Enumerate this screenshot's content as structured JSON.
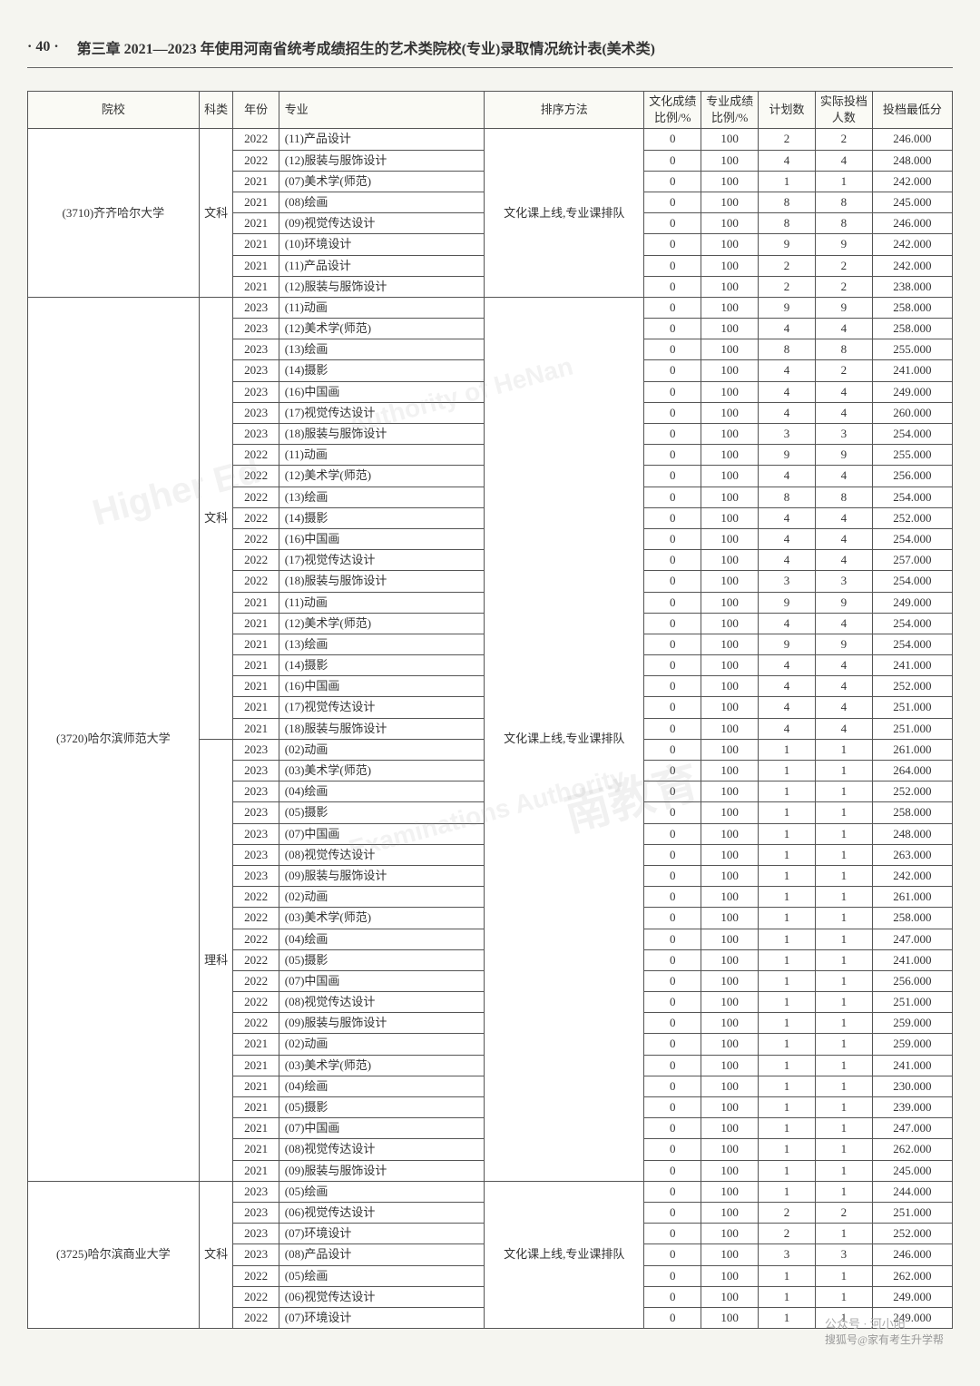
{
  "page_number": "· 40 ·",
  "chapter": "第三章  2021—2023 年使用河南省统考成绩招生的艺术类院校(专业)录取情况统计表(美术类)",
  "columns": [
    "院校",
    "科类",
    "年份",
    "专业",
    "排序方法",
    "文化成绩比例/%",
    "专业成绩比例/%",
    "计划数",
    "实际投档人数",
    "投档最低分"
  ],
  "footer_wx": "公众号 · 河小阳",
  "footer_src": "搜狐号@家有考生升学帮",
  "groups": [
    {
      "school": "(3710)齐齐哈尔大学",
      "sort": "文化课上线,专业课排队",
      "cats": [
        {
          "cat": "文科",
          "rows": [
            [
              "2022",
              "(11)产品设计",
              "0",
              "100",
              "2",
              "2",
              "246.000"
            ],
            [
              "2022",
              "(12)服装与服饰设计",
              "0",
              "100",
              "4",
              "4",
              "248.000"
            ],
            [
              "2021",
              "(07)美术学(师范)",
              "0",
              "100",
              "1",
              "1",
              "242.000"
            ],
            [
              "2021",
              "(08)绘画",
              "0",
              "100",
              "8",
              "8",
              "245.000"
            ],
            [
              "2021",
              "(09)视觉传达设计",
              "0",
              "100",
              "8",
              "8",
              "246.000"
            ],
            [
              "2021",
              "(10)环境设计",
              "0",
              "100",
              "9",
              "9",
              "242.000"
            ],
            [
              "2021",
              "(11)产品设计",
              "0",
              "100",
              "2",
              "2",
              "242.000"
            ],
            [
              "2021",
              "(12)服装与服饰设计",
              "0",
              "100",
              "2",
              "2",
              "238.000"
            ]
          ]
        }
      ]
    },
    {
      "school": "(3720)哈尔滨师范大学",
      "sort": "文化课上线,专业课排队",
      "cats": [
        {
          "cat": "文科",
          "rows": [
            [
              "2023",
              "(11)动画",
              "0",
              "100",
              "9",
              "9",
              "258.000"
            ],
            [
              "2023",
              "(12)美术学(师范)",
              "0",
              "100",
              "4",
              "4",
              "258.000"
            ],
            [
              "2023",
              "(13)绘画",
              "0",
              "100",
              "8",
              "8",
              "255.000"
            ],
            [
              "2023",
              "(14)摄影",
              "0",
              "100",
              "4",
              "2",
              "241.000"
            ],
            [
              "2023",
              "(16)中国画",
              "0",
              "100",
              "4",
              "4",
              "249.000"
            ],
            [
              "2023",
              "(17)视觉传达设计",
              "0",
              "100",
              "4",
              "4",
              "260.000"
            ],
            [
              "2023",
              "(18)服装与服饰设计",
              "0",
              "100",
              "3",
              "3",
              "254.000"
            ],
            [
              "2022",
              "(11)动画",
              "0",
              "100",
              "9",
              "9",
              "255.000"
            ],
            [
              "2022",
              "(12)美术学(师范)",
              "0",
              "100",
              "4",
              "4",
              "256.000"
            ],
            [
              "2022",
              "(13)绘画",
              "0",
              "100",
              "8",
              "8",
              "254.000"
            ],
            [
              "2022",
              "(14)摄影",
              "0",
              "100",
              "4",
              "4",
              "252.000"
            ],
            [
              "2022",
              "(16)中国画",
              "0",
              "100",
              "4",
              "4",
              "254.000"
            ],
            [
              "2022",
              "(17)视觉传达设计",
              "0",
              "100",
              "4",
              "4",
              "257.000"
            ],
            [
              "2022",
              "(18)服装与服饰设计",
              "0",
              "100",
              "3",
              "3",
              "254.000"
            ],
            [
              "2021",
              "(11)动画",
              "0",
              "100",
              "9",
              "9",
              "249.000"
            ],
            [
              "2021",
              "(12)美术学(师范)",
              "0",
              "100",
              "4",
              "4",
              "254.000"
            ],
            [
              "2021",
              "(13)绘画",
              "0",
              "100",
              "9",
              "9",
              "254.000"
            ],
            [
              "2021",
              "(14)摄影",
              "0",
              "100",
              "4",
              "4",
              "241.000"
            ],
            [
              "2021",
              "(16)中国画",
              "0",
              "100",
              "4",
              "4",
              "252.000"
            ],
            [
              "2021",
              "(17)视觉传达设计",
              "0",
              "100",
              "4",
              "4",
              "251.000"
            ],
            [
              "2021",
              "(18)服装与服饰设计",
              "0",
              "100",
              "4",
              "4",
              "251.000"
            ]
          ]
        },
        {
          "cat": "理科",
          "rows": [
            [
              "2023",
              "(02)动画",
              "0",
              "100",
              "1",
              "1",
              "261.000"
            ],
            [
              "2023",
              "(03)美术学(师范)",
              "0",
              "100",
              "1",
              "1",
              "264.000"
            ],
            [
              "2023",
              "(04)绘画",
              "0",
              "100",
              "1",
              "1",
              "252.000"
            ],
            [
              "2023",
              "(05)摄影",
              "0",
              "100",
              "1",
              "1",
              "258.000"
            ],
            [
              "2023",
              "(07)中国画",
              "0",
              "100",
              "1",
              "1",
              "248.000"
            ],
            [
              "2023",
              "(08)视觉传达设计",
              "0",
              "100",
              "1",
              "1",
              "263.000"
            ],
            [
              "2023",
              "(09)服装与服饰设计",
              "0",
              "100",
              "1",
              "1",
              "242.000"
            ],
            [
              "2022",
              "(02)动画",
              "0",
              "100",
              "1",
              "1",
              "261.000"
            ],
            [
              "2022",
              "(03)美术学(师范)",
              "0",
              "100",
              "1",
              "1",
              "258.000"
            ],
            [
              "2022",
              "(04)绘画",
              "0",
              "100",
              "1",
              "1",
              "247.000"
            ],
            [
              "2022",
              "(05)摄影",
              "0",
              "100",
              "1",
              "1",
              "241.000"
            ],
            [
              "2022",
              "(07)中国画",
              "0",
              "100",
              "1",
              "1",
              "256.000"
            ],
            [
              "2022",
              "(08)视觉传达设计",
              "0",
              "100",
              "1",
              "1",
              "251.000"
            ],
            [
              "2022",
              "(09)服装与服饰设计",
              "0",
              "100",
              "1",
              "1",
              "259.000"
            ],
            [
              "2021",
              "(02)动画",
              "0",
              "100",
              "1",
              "1",
              "259.000"
            ],
            [
              "2021",
              "(03)美术学(师范)",
              "0",
              "100",
              "1",
              "1",
              "241.000"
            ],
            [
              "2021",
              "(04)绘画",
              "0",
              "100",
              "1",
              "1",
              "230.000"
            ],
            [
              "2021",
              "(05)摄影",
              "0",
              "100",
              "1",
              "1",
              "239.000"
            ],
            [
              "2021",
              "(07)中国画",
              "0",
              "100",
              "1",
              "1",
              "247.000"
            ],
            [
              "2021",
              "(08)视觉传达设计",
              "0",
              "100",
              "1",
              "1",
              "262.000"
            ],
            [
              "2021",
              "(09)服装与服饰设计",
              "0",
              "100",
              "1",
              "1",
              "245.000"
            ]
          ]
        }
      ]
    },
    {
      "school": "(3725)哈尔滨商业大学",
      "sort": "文化课上线,专业课排队",
      "cats": [
        {
          "cat": "文科",
          "rows": [
            [
              "2023",
              "(05)绘画",
              "0",
              "100",
              "1",
              "1",
              "244.000"
            ],
            [
              "2023",
              "(06)视觉传达设计",
              "0",
              "100",
              "2",
              "2",
              "251.000"
            ],
            [
              "2023",
              "(07)环境设计",
              "0",
              "100",
              "2",
              "1",
              "252.000"
            ],
            [
              "2023",
              "(08)产品设计",
              "0",
              "100",
              "3",
              "3",
              "246.000"
            ],
            [
              "2022",
              "(05)绘画",
              "0",
              "100",
              "1",
              "1",
              "262.000"
            ],
            [
              "2022",
              "(06)视觉传达设计",
              "0",
              "100",
              "1",
              "1",
              "249.000"
            ],
            [
              "2022",
              "(07)环境设计",
              "0",
              "100",
              "1",
              "1",
              "249.000"
            ]
          ]
        }
      ]
    }
  ]
}
